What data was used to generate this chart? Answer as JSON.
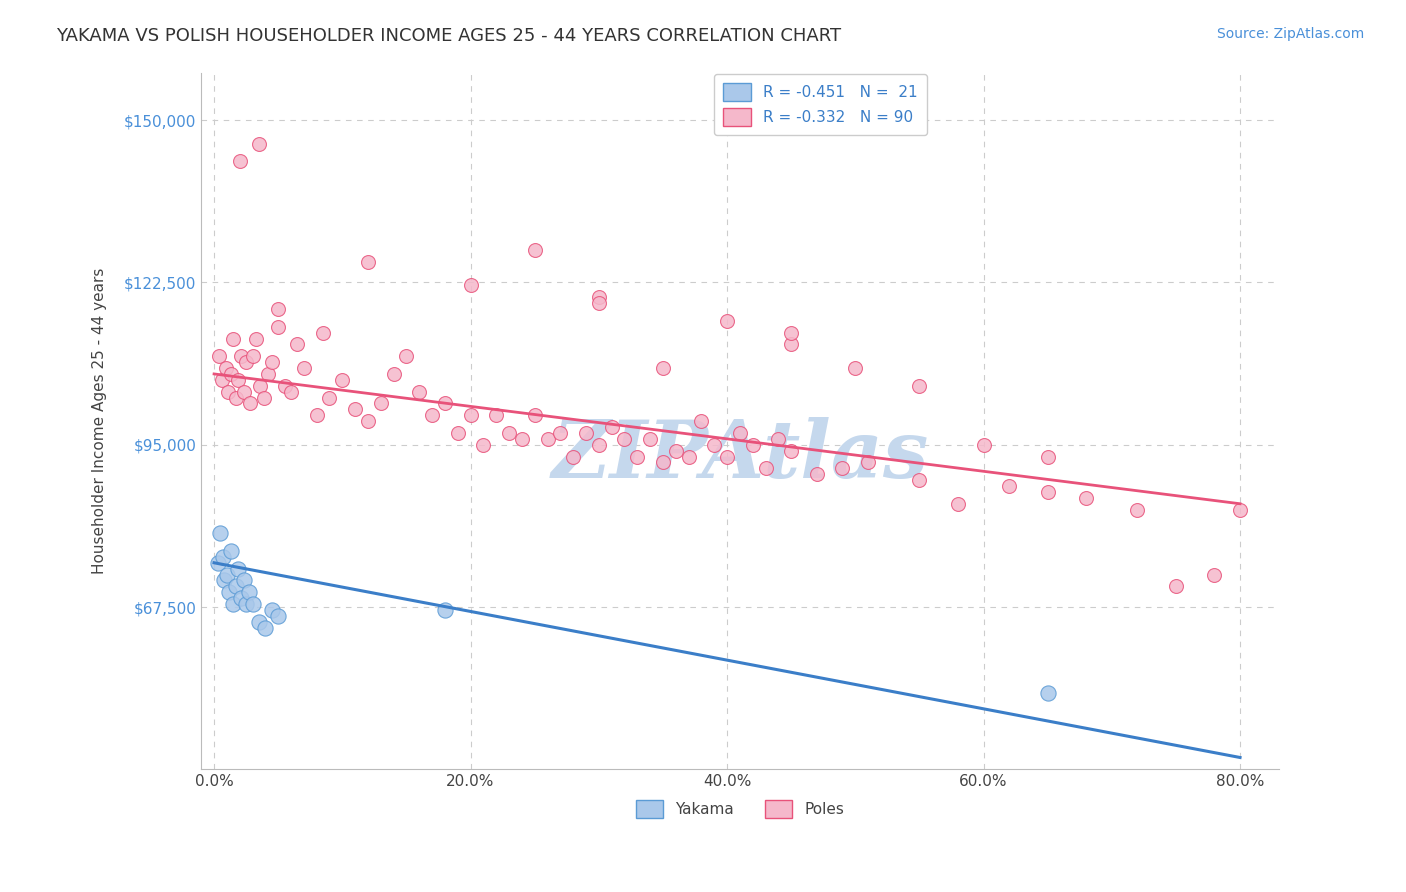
{
  "title": "YAKAMA VS POLISH HOUSEHOLDER INCOME AGES 25 - 44 YEARS CORRELATION CHART",
  "source": "Source: ZipAtlas.com",
  "xlabel_vals": [
    0.0,
    20.0,
    40.0,
    60.0,
    80.0
  ],
  "ylabel_vals": [
    67500,
    95000,
    122500,
    150000
  ],
  "ylim": [
    40000,
    158000
  ],
  "xlim": [
    -1.0,
    83.0
  ],
  "yakama_color": "#aac8ea",
  "poles_color": "#f5b8cb",
  "yakama_edge_color": "#5b9bd5",
  "poles_edge_color": "#e8527a",
  "yakama_line_color": "#3b7ec8",
  "poles_line_color": "#e8527a",
  "tick_color_right": "#4a90d9",
  "watermark": "ZIPAtlas",
  "watermark_color": "#c5d8ed",
  "background_color": "#ffffff",
  "grid_color": "#cccccc",
  "ylabel_label": "Householder Income Ages 25 - 44 years",
  "legend_label_yakama": "Yakama",
  "legend_label_poles": "Poles",
  "legend_R_yakama": "R = -0.451",
  "legend_N_yakama": "N =  21",
  "legend_R_poles": "R = -0.332",
  "legend_N_poles": "N = 90",
  "yakama_x": [
    0.3,
    0.5,
    0.7,
    0.8,
    1.0,
    1.2,
    1.3,
    1.5,
    1.7,
    1.9,
    2.1,
    2.3,
    2.5,
    2.7,
    3.0,
    3.5,
    4.0,
    4.5,
    5.0,
    18.0,
    65.0
  ],
  "yakama_y": [
    75000,
    80000,
    76000,
    72000,
    73000,
    70000,
    77000,
    68000,
    71000,
    74000,
    69000,
    72000,
    68000,
    70000,
    68000,
    65000,
    64000,
    67000,
    66000,
    67000,
    53000
  ],
  "poles_x": [
    0.4,
    0.6,
    0.9,
    1.1,
    1.3,
    1.5,
    1.7,
    1.9,
    2.1,
    2.3,
    2.5,
    2.8,
    3.0,
    3.3,
    3.6,
    3.9,
    4.2,
    4.5,
    5.0,
    5.5,
    6.0,
    7.0,
    8.0,
    9.0,
    10.0,
    11.0,
    12.0,
    13.0,
    14.0,
    15.0,
    16.0,
    17.0,
    18.0,
    19.0,
    20.0,
    21.0,
    22.0,
    23.0,
    24.0,
    25.0,
    26.0,
    27.0,
    28.0,
    29.0,
    30.0,
    31.0,
    32.0,
    33.0,
    34.0,
    35.0,
    36.0,
    37.0,
    38.0,
    39.0,
    40.0,
    41.0,
    42.0,
    43.0,
    44.0,
    45.0,
    47.0,
    49.0,
    51.0,
    55.0,
    58.0,
    62.0,
    65.0,
    68.0,
    72.0,
    75.0,
    78.0,
    80.0,
    5.0,
    6.5,
    8.5,
    25.0,
    30.0,
    35.0,
    40.0,
    45.0,
    50.0,
    55.0,
    60.0,
    65.0,
    12.0,
    20.0,
    30.0,
    45.0,
    2.0,
    3.5
  ],
  "poles_y": [
    110000,
    106000,
    108000,
    104000,
    107000,
    113000,
    103000,
    106000,
    110000,
    104000,
    109000,
    102000,
    110000,
    113000,
    105000,
    103000,
    107000,
    109000,
    115000,
    105000,
    104000,
    108000,
    100000,
    103000,
    106000,
    101000,
    99000,
    102000,
    107000,
    110000,
    104000,
    100000,
    102000,
    97000,
    100000,
    95000,
    100000,
    97000,
    96000,
    100000,
    96000,
    97000,
    93000,
    97000,
    95000,
    98000,
    96000,
    93000,
    96000,
    92000,
    94000,
    93000,
    99000,
    95000,
    93000,
    97000,
    95000,
    91000,
    96000,
    94000,
    90000,
    91000,
    92000,
    89000,
    85000,
    88000,
    87000,
    86000,
    84000,
    71000,
    73000,
    84000,
    118000,
    112000,
    114000,
    128000,
    120000,
    108000,
    116000,
    112000,
    108000,
    105000,
    95000,
    93000,
    126000,
    122000,
    119000,
    114000,
    143000,
    146000
  ],
  "yakama_marker_size": 120,
  "poles_marker_size": 100,
  "title_fontsize": 13,
  "axis_label_fontsize": 11,
  "tick_fontsize": 11,
  "legend_fontsize": 11,
  "source_fontsize": 10,
  "blue_line_x0": 0,
  "blue_line_y0": 75000,
  "blue_line_x1": 80,
  "blue_line_y1": 42000,
  "pink_line_x0": 0,
  "pink_line_y0": 107000,
  "pink_line_x1": 80,
  "pink_line_y1": 85000
}
